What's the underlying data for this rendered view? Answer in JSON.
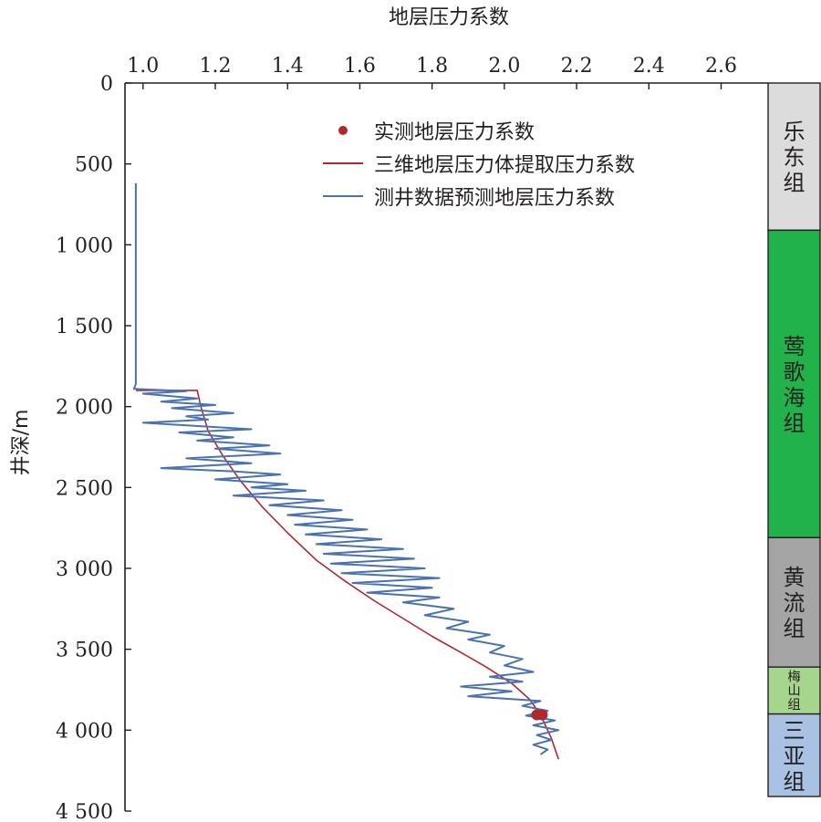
{
  "chart_data": {
    "type": "line",
    "title": "地层压力系数",
    "xlabel": "地层压力系数",
    "ylabel": "井深/m",
    "xlim": [
      0.95,
      2.73
    ],
    "ylim": [
      0,
      4500
    ],
    "x_axis_position": "top",
    "y_inverted": true,
    "x_ticks": [
      1.0,
      1.2,
      1.4,
      1.6,
      1.8,
      2.0,
      2.2,
      2.4,
      2.6
    ],
    "x_tick_labels": [
      "1.0",
      "1.2",
      "1.4",
      "1.6",
      "1.8",
      "2.0",
      "2.2",
      "2.4",
      "2.6"
    ],
    "y_ticks": [
      0,
      500,
      1000,
      1500,
      2000,
      2500,
      3000,
      3500,
      4000,
      4500
    ],
    "y_tick_labels": [
      "0",
      "500",
      "1 000",
      "1 500",
      "2 000",
      "2 500",
      "3 000",
      "3 500",
      "4 000",
      "4 500"
    ],
    "grid": false,
    "legend_position": "top-center",
    "legend": [
      {
        "name": "实测地层压力系数",
        "kind": "point",
        "color": "#b0282c"
      },
      {
        "name": "三维地层压力体提取压力系数",
        "kind": "line",
        "color": "#b0282c"
      },
      {
        "name": "测井数据预测地层压力系数",
        "kind": "line",
        "color": "#4a72b0"
      }
    ],
    "series": [
      {
        "name": "实测地层压力系数",
        "kind": "point",
        "color": "#b0282c",
        "points": [
          [
            2.09,
            3905
          ],
          [
            2.105,
            3905
          ]
        ]
      },
      {
        "name": "三维地层压力体提取压力系数",
        "kind": "line",
        "color": "#b0282c",
        "points": [
          [
            0.98,
            1900
          ],
          [
            1.15,
            1900
          ],
          [
            1.16,
            2000
          ],
          [
            1.18,
            2150
          ],
          [
            1.22,
            2300
          ],
          [
            1.27,
            2460
          ],
          [
            1.33,
            2620
          ],
          [
            1.4,
            2780
          ],
          [
            1.48,
            2950
          ],
          [
            1.56,
            3080
          ],
          [
            1.64,
            3200
          ],
          [
            1.72,
            3310
          ],
          [
            1.8,
            3420
          ],
          [
            1.88,
            3520
          ],
          [
            1.95,
            3610
          ],
          [
            2.02,
            3710
          ],
          [
            2.07,
            3810
          ],
          [
            2.1,
            3905
          ],
          [
            2.13,
            4050
          ],
          [
            2.15,
            4180
          ]
        ]
      },
      {
        "name": "测井数据预测地层压力系数",
        "kind": "line",
        "color": "#4a72b0",
        "points": [
          [
            0.98,
            620
          ],
          [
            0.98,
            1860
          ],
          [
            0.975,
            1890
          ],
          [
            1.12,
            1905
          ],
          [
            1.0,
            1920
          ],
          [
            1.15,
            1950
          ],
          [
            1.05,
            1970
          ],
          [
            1.2,
            1990
          ],
          [
            1.08,
            2010
          ],
          [
            1.25,
            2040
          ],
          [
            1.12,
            2060
          ],
          [
            1.18,
            2080
          ],
          [
            1.0,
            2100
          ],
          [
            1.3,
            2140
          ],
          [
            1.1,
            2160
          ],
          [
            1.25,
            2190
          ],
          [
            1.15,
            2210
          ],
          [
            1.35,
            2240
          ],
          [
            1.2,
            2260
          ],
          [
            1.38,
            2290
          ],
          [
            1.12,
            2320
          ],
          [
            1.3,
            2350
          ],
          [
            1.05,
            2380
          ],
          [
            1.25,
            2400
          ],
          [
            1.38,
            2420
          ],
          [
            1.2,
            2450
          ],
          [
            1.4,
            2480
          ],
          [
            1.3,
            2500
          ],
          [
            1.45,
            2520
          ],
          [
            1.25,
            2550
          ],
          [
            1.5,
            2580
          ],
          [
            1.35,
            2610
          ],
          [
            1.55,
            2640
          ],
          [
            1.4,
            2670
          ],
          [
            1.58,
            2700
          ],
          [
            1.42,
            2730
          ],
          [
            1.62,
            2760
          ],
          [
            1.45,
            2790
          ],
          [
            1.66,
            2820
          ],
          [
            1.48,
            2850
          ],
          [
            1.72,
            2880
          ],
          [
            1.5,
            2910
          ],
          [
            1.75,
            2940
          ],
          [
            1.52,
            2970
          ],
          [
            1.78,
            3000
          ],
          [
            1.55,
            3030
          ],
          [
            1.82,
            3060
          ],
          [
            1.58,
            3090
          ],
          [
            1.8,
            3120
          ],
          [
            1.62,
            3150
          ],
          [
            1.82,
            3180
          ],
          [
            1.72,
            3210
          ],
          [
            1.86,
            3250
          ],
          [
            1.78,
            3290
          ],
          [
            1.9,
            3330
          ],
          [
            1.84,
            3370
          ],
          [
            1.96,
            3410
          ],
          [
            1.9,
            3440
          ],
          [
            2.0,
            3480
          ],
          [
            1.96,
            3520
          ],
          [
            2.05,
            3560
          ],
          [
            2.0,
            3600
          ],
          [
            2.08,
            3640
          ],
          [
            1.96,
            3670
          ],
          [
            2.05,
            3700
          ],
          [
            1.88,
            3730
          ],
          [
            2.02,
            3760
          ],
          [
            1.9,
            3790
          ],
          [
            2.1,
            3820
          ],
          [
            2.05,
            3850
          ],
          [
            2.12,
            3880
          ],
          [
            2.06,
            3910
          ],
          [
            2.14,
            3940
          ],
          [
            2.08,
            3970
          ],
          [
            2.15,
            4000
          ],
          [
            2.09,
            4030
          ],
          [
            2.13,
            4060
          ],
          [
            2.08,
            4090
          ],
          [
            2.12,
            4120
          ],
          [
            2.1,
            4150
          ]
        ]
      }
    ],
    "formations": [
      {
        "name": "乐东组",
        "top": 0,
        "bottom": 910,
        "color": "#dcdcdc"
      },
      {
        "name": "莺歌海组",
        "top": 910,
        "bottom": 2810,
        "color": "#21b24c"
      },
      {
        "name": "黄流组",
        "top": 2810,
        "bottom": 3610,
        "color": "#a5a5a5"
      },
      {
        "name": "梅山组",
        "top": 3610,
        "bottom": 3900,
        "color": "#a6d68d"
      },
      {
        "name": "三亚组",
        "top": 3900,
        "bottom": 4410,
        "color": "#a9c2e4"
      }
    ]
  }
}
